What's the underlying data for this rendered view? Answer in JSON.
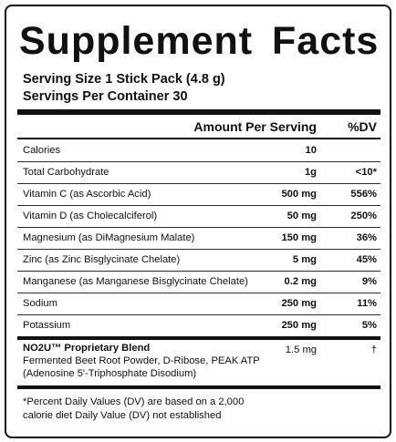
{
  "header": {
    "title": "Supplement Facts"
  },
  "serving": {
    "size": "Serving Size 1 Stick Pack (4.8 g)",
    "per_container": "Servings Per Container 30"
  },
  "table": {
    "columns": [
      "Amount Per Serving",
      "%DV"
    ],
    "rows": [
      [
        "Calories",
        "10",
        ""
      ],
      [
        "Total Carbohydrate",
        "1g",
        "<10*"
      ],
      [
        "Vitamin C (as Ascorbic Acid)",
        "500 mg",
        "556%"
      ],
      [
        "Vitamin D (as Cholecalciferol)",
        "50 mg",
        "250%"
      ],
      [
        "Magnesium (as DiMagnesium Malate)",
        "150 mg",
        "36%"
      ],
      [
        "Zinc (as Zinc Bisglycinate Chelate)",
        "5 mg",
        "45%"
      ],
      [
        "Manganese (as Manganese Bisglycinate Chelate)",
        "0.2 mg",
        "9%"
      ],
      [
        "Sodium",
        "250 mg",
        "11%"
      ],
      [
        "Potassium",
        "250 mg",
        "5%"
      ]
    ]
  },
  "blend": {
    "name": "NO2U™ Proprietary Blend",
    "ingredients": [
      "Fermented Beet Root Powder, D-Ribose, PEAK ATP",
      "(Adenosine 5'-Triphosphate Disodium)"
    ],
    "amount": "1.5 mg",
    "dv": "†"
  },
  "footnote": [
    "*Percent Daily Values (DV) are based on a 2,000",
    "calorie diet Daily Value (DV) not established"
  ]
}
